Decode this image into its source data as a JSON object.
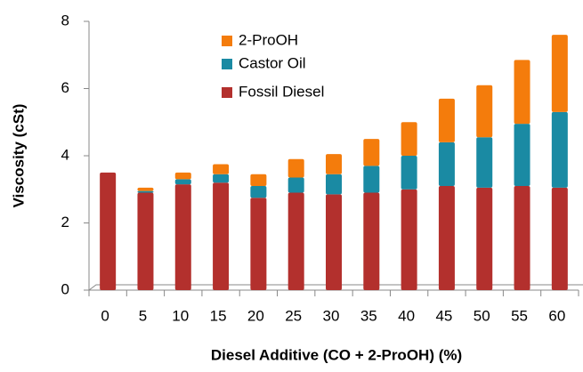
{
  "chart_data": {
    "type": "stacked_bar",
    "xlabel": "Diesel Additive (CO + 2-ProOH) (%)",
    "ylabel": "Viscosity (cSt)",
    "categories": [
      "0",
      "5",
      "10",
      "15",
      "20",
      "25",
      "30",
      "35",
      "40",
      "45",
      "50",
      "55",
      "60"
    ],
    "series": [
      {
        "name": "Fossil Diesel",
        "color": "#b3302d",
        "values": [
          3.5,
          2.9,
          3.15,
          3.2,
          2.75,
          2.9,
          2.85,
          2.9,
          3.0,
          3.1,
          3.05,
          3.1,
          3.05
        ]
      },
      {
        "name": "Castor Oil",
        "color": "#1a8aa3",
        "values": [
          0,
          0.05,
          0.15,
          0.25,
          0.35,
          0.45,
          0.6,
          0.8,
          1.0,
          1.3,
          1.5,
          1.85,
          2.25
        ]
      },
      {
        "name": "2-ProOH",
        "color": "#f47c0c",
        "values": [
          0,
          0.1,
          0.2,
          0.3,
          0.35,
          0.55,
          0.6,
          0.8,
          1.0,
          1.3,
          1.55,
          1.9,
          2.3
        ]
      }
    ],
    "ylim": [
      0,
      8
    ],
    "yticks": [
      0,
      2,
      4,
      6,
      8
    ]
  }
}
